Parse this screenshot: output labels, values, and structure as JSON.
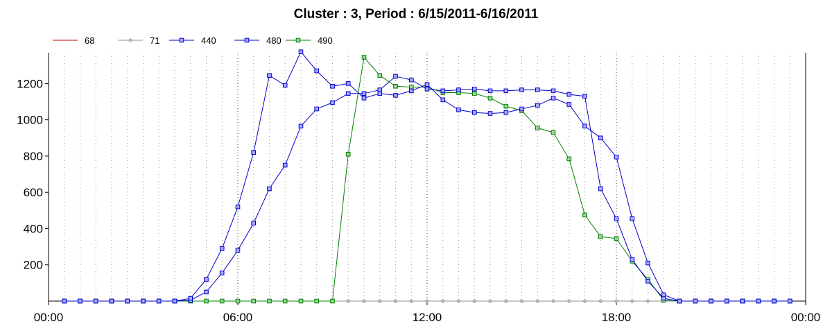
{
  "chart_data": {
    "type": "line",
    "title": "Cluster : 3, Period : 6/15/2011-6/16/2011",
    "xlabel": "",
    "ylabel": "",
    "x_unit": "hours",
    "xlim": [
      0,
      24
    ],
    "ylim": [
      0,
      1370
    ],
    "x_tick_values": [
      0,
      6,
      12,
      18,
      24
    ],
    "x_tick_labels": [
      "00:00",
      "06:00",
      "12:00",
      "18:00",
      "00:00"
    ],
    "y_tick_values": [
      200,
      400,
      600,
      800,
      1000,
      1200
    ],
    "y_tick_labels": [
      "200",
      "400",
      "600",
      "800",
      "1000",
      "1200"
    ],
    "minor_grid_x_step": 0.5,
    "grid": true,
    "legend_position": "top-left",
    "x": [
      0.5,
      1.0,
      1.5,
      2.0,
      2.5,
      3.0,
      3.5,
      4.0,
      4.5,
      5.0,
      5.5,
      6.0,
      6.5,
      7.0,
      7.5,
      8.0,
      8.5,
      9.0,
      9.5,
      10.0,
      10.5,
      11.0,
      11.5,
      12.0,
      12.5,
      13.0,
      13.5,
      14.0,
      14.5,
      15.0,
      15.5,
      16.0,
      16.5,
      17.0,
      17.5,
      18.0,
      18.5,
      19.0,
      19.5,
      20.0,
      20.5,
      21.0,
      21.5,
      22.0,
      22.5,
      23.0,
      23.5
    ],
    "series": [
      {
        "name": "68",
        "color": "#c00000",
        "marker": "none",
        "values": [
          0,
          0,
          0,
          0,
          0,
          0,
          0,
          0,
          0,
          0,
          0,
          0,
          0,
          0,
          0,
          0,
          0,
          0,
          0,
          0,
          0,
          0,
          0,
          0,
          0,
          0,
          0,
          0,
          0,
          0,
          0,
          0,
          0,
          0,
          0,
          0,
          0,
          0,
          0,
          0,
          0,
          0,
          0,
          0,
          0,
          0,
          0
        ]
      },
      {
        "name": "71",
        "color": "#909090",
        "marker": "diamond",
        "values": [
          0,
          0,
          0,
          0,
          0,
          0,
          0,
          0,
          0,
          0,
          0,
          0,
          0,
          0,
          0,
          0,
          0,
          0,
          0,
          0,
          0,
          0,
          0,
          0,
          0,
          0,
          0,
          0,
          0,
          0,
          0,
          0,
          0,
          0,
          0,
          0,
          0,
          0,
          0,
          0,
          0,
          0,
          0,
          0,
          0,
          0,
          0
        ]
      },
      {
        "name": "440",
        "color": "#0000cc",
        "marker": "square",
        "values": [
          0,
          0,
          0,
          0,
          0,
          0,
          0,
          0,
          15,
          120,
          290,
          520,
          820,
          1245,
          1190,
          1375,
          1270,
          1185,
          1200,
          1120,
          1145,
          1135,
          1160,
          1195,
          1110,
          1055,
          1040,
          1035,
          1040,
          1060,
          1080,
          1120,
          1085,
          965,
          900,
          795,
          455,
          210,
          35,
          0,
          0,
          0,
          0,
          0,
          0,
          0,
          0
        ]
      },
      {
        "name": "480",
        "color": "#0000cc",
        "marker": "square",
        "values": [
          0,
          0,
          0,
          0,
          0,
          0,
          0,
          0,
          5,
          50,
          155,
          280,
          430,
          620,
          750,
          965,
          1060,
          1095,
          1145,
          1145,
          1165,
          1240,
          1220,
          1170,
          1160,
          1165,
          1170,
          1160,
          1160,
          1165,
          1165,
          1160,
          1140,
          1130,
          620,
          455,
          230,
          110,
          15,
          0,
          0,
          0,
          0,
          0,
          0,
          0,
          0
        ]
      },
      {
        "name": "490",
        "color": "#008000",
        "marker": "square",
        "values": [
          0,
          0,
          0,
          0,
          0,
          0,
          0,
          0,
          0,
          0,
          0,
          0,
          0,
          0,
          0,
          0,
          0,
          0,
          810,
          1345,
          1245,
          1185,
          1180,
          1180,
          1150,
          1150,
          1145,
          1120,
          1075,
          1050,
          955,
          930,
          785,
          475,
          355,
          345,
          220,
          120,
          5,
          0,
          0,
          0,
          0,
          0,
          0,
          0,
          0
        ]
      }
    ]
  }
}
